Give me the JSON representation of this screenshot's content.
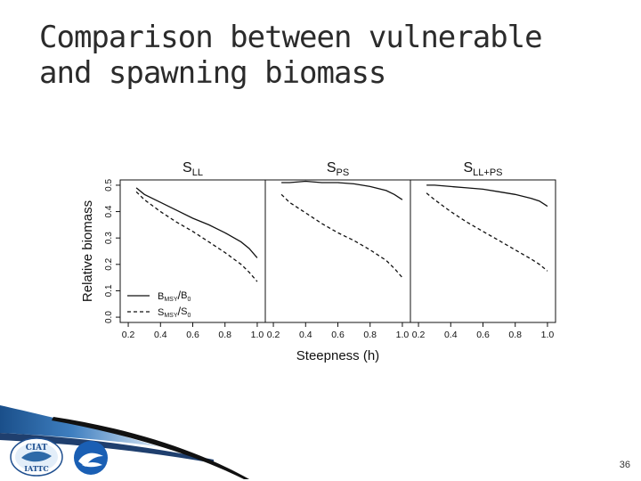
{
  "title_lines": [
    "Comparison between vulnerable",
    "and spawning biomass"
  ],
  "page_number": "36",
  "logos": {
    "left_top": "CIAT",
    "left_bottom": "IATTC"
  },
  "chart_data": {
    "type": "line",
    "ylabel": "Relative biomass",
    "xlabel": "Steepness (h)",
    "xlim": [
      0.15,
      1.05
    ],
    "ylim": [
      -0.02,
      0.52
    ],
    "xticks": [
      0.2,
      0.4,
      0.6,
      0.8,
      1.0
    ],
    "xtick_labels": [
      "0.2",
      "0.4",
      "0.6",
      "0.8",
      "1.0"
    ],
    "yticks": [
      0.0,
      0.1,
      0.2,
      0.3,
      0.4,
      0.5
    ],
    "ytick_labels": [
      "0.0",
      "0.1",
      "0.2",
      "0.3",
      "0.4",
      "0.5"
    ],
    "legend": {
      "placement": "bottom-left",
      "entries": [
        {
          "label": "BMSY/B0",
          "num": "B",
          "num_sub": "MSY",
          "den": "B",
          "den_sub": "0",
          "style": "solid"
        },
        {
          "label": "SMSY/S0",
          "num": "S",
          "num_sub": "MSY",
          "den": "S",
          "den_sub": "0",
          "style": "dashed"
        }
      ]
    },
    "panels": [
      {
        "title_main": "S",
        "title_sub": "LL",
        "x": [
          0.25,
          0.3,
          0.4,
          0.5,
          0.6,
          0.7,
          0.8,
          0.9,
          0.95,
          1.0
        ],
        "series": [
          {
            "style": "solid",
            "values": [
              0.49,
              0.465,
              0.435,
              0.405,
              0.375,
              0.35,
              0.32,
              0.285,
              0.26,
              0.225
            ]
          },
          {
            "style": "dashed",
            "values": [
              0.475,
              0.445,
              0.4,
              0.36,
              0.325,
              0.285,
              0.245,
              0.2,
              0.17,
              0.135
            ]
          }
        ]
      },
      {
        "title_main": "S",
        "title_sub": "PS",
        "x": [
          0.25,
          0.3,
          0.4,
          0.5,
          0.6,
          0.7,
          0.8,
          0.9,
          0.95,
          1.0
        ],
        "series": [
          {
            "style": "solid",
            "values": [
              0.51,
              0.51,
              0.515,
              0.51,
              0.51,
              0.505,
              0.495,
              0.48,
              0.465,
              0.445
            ]
          },
          {
            "style": "dashed",
            "values": [
              0.465,
              0.435,
              0.395,
              0.355,
              0.32,
              0.29,
              0.255,
              0.215,
              0.185,
              0.15
            ]
          }
        ]
      },
      {
        "title_main": "S",
        "title_sub": "LL+PS",
        "x": [
          0.25,
          0.3,
          0.4,
          0.5,
          0.6,
          0.7,
          0.8,
          0.9,
          0.95,
          1.0
        ],
        "series": [
          {
            "style": "solid",
            "values": [
              0.5,
              0.5,
              0.495,
              0.49,
              0.485,
              0.475,
              0.465,
              0.45,
              0.44,
              0.42
            ]
          },
          {
            "style": "dashed",
            "values": [
              0.47,
              0.445,
              0.4,
              0.36,
              0.325,
              0.29,
              0.255,
              0.22,
              0.2,
              0.175
            ]
          }
        ]
      }
    ]
  }
}
